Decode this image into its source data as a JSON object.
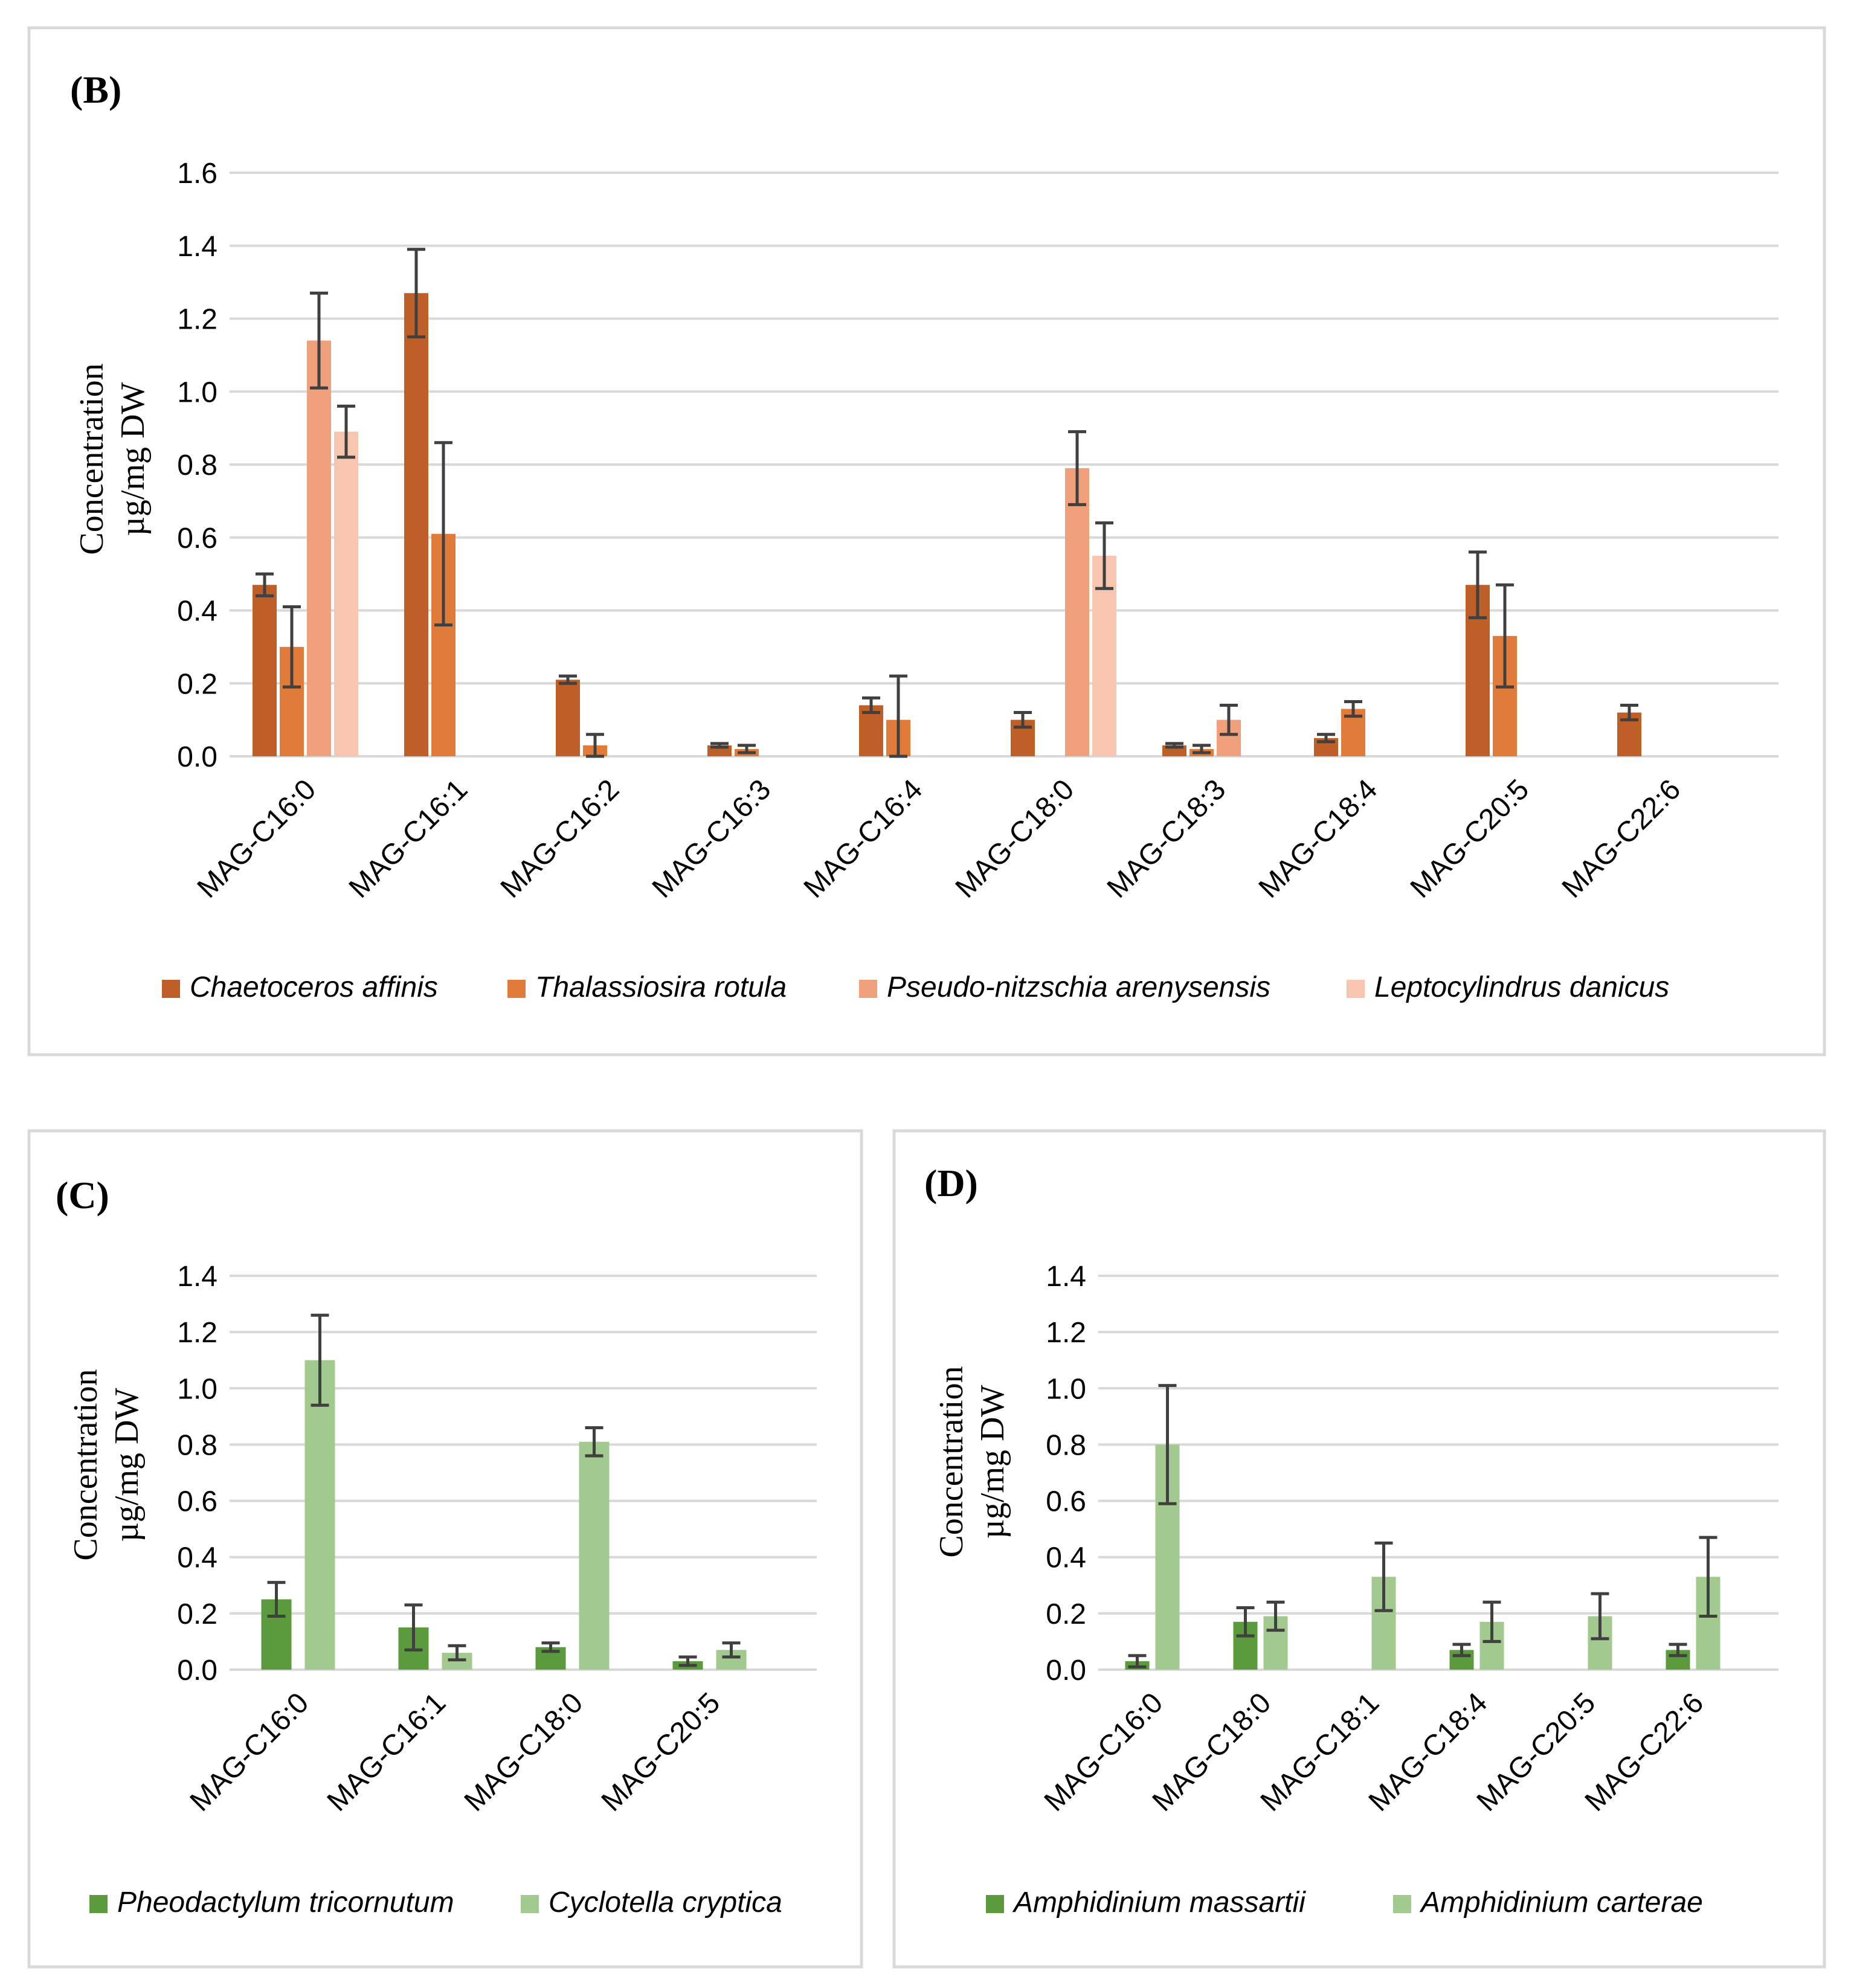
{
  "chart_data": [
    {
      "id": "B",
      "panel_label": "(B)",
      "type": "bar",
      "ylabel_line1": "Concentration",
      "ylabel_line2": "µg/mg DW",
      "ylim": [
        0,
        1.6
      ],
      "yticks": [
        "0.0",
        "0.2",
        "0.4",
        "0.6",
        "0.8",
        "1.0",
        "1.2",
        "1.4",
        "1.6"
      ],
      "grid": true,
      "legend_position": "bottom",
      "categories": [
        "MAG-C16:0",
        "MAG-C16:1",
        "MAG-C16:2",
        "MAG-C16:3",
        "MAG-C16:4",
        "MAG-C18:0",
        "MAG-C18:3",
        "MAG-C18:4",
        "MAG-C20:5",
        "MAG-C22:6"
      ],
      "series": [
        {
          "name": "Chaetoceros affinis",
          "color": "#bf5f28",
          "values": [
            0.47,
            1.27,
            0.21,
            0.03,
            0.14,
            0.1,
            0.03,
            0.05,
            0.47,
            0.12
          ],
          "errors": [
            0.03,
            0.12,
            0.01,
            0.005,
            0.02,
            0.02,
            0.005,
            0.01,
            0.09,
            0.02
          ]
        },
        {
          "name": "Thalassiosira rotula",
          "color": "#e07b39",
          "values": [
            0.3,
            0.61,
            0.03,
            0.02,
            0.1,
            null,
            0.02,
            0.13,
            0.33,
            null
          ],
          "errors": [
            0.11,
            0.25,
            0.03,
            0.01,
            0.12,
            null,
            0.01,
            0.02,
            0.14,
            null
          ]
        },
        {
          "name": "Pseudo-nitzschia arenysensis",
          "color": "#f0a07a",
          "values": [
            1.14,
            null,
            null,
            null,
            null,
            0.79,
            0.1,
            null,
            null,
            null
          ],
          "errors": [
            0.13,
            null,
            null,
            null,
            null,
            0.1,
            0.04,
            null,
            null,
            null
          ]
        },
        {
          "name": "Leptocylindrus danicus",
          "color": "#f8c5b0",
          "values": [
            0.89,
            null,
            null,
            null,
            null,
            0.55,
            null,
            null,
            null,
            null
          ],
          "errors": [
            0.07,
            null,
            null,
            null,
            null,
            0.09,
            null,
            null,
            null,
            null
          ]
        }
      ]
    },
    {
      "id": "C",
      "panel_label": "(C)",
      "type": "bar",
      "ylabel_line1": "Concentration",
      "ylabel_line2": "µg/mg DW",
      "ylim": [
        0,
        1.4
      ],
      "yticks": [
        "0.0",
        "0.2",
        "0.4",
        "0.6",
        "0.8",
        "1.0",
        "1.2",
        "1.4"
      ],
      "grid": true,
      "legend_position": "bottom",
      "categories": [
        "MAG-C16:0",
        "MAG-C16:1",
        "MAG-C18:0",
        "MAG-C20:5"
      ],
      "series": [
        {
          "name": "Pheodactylum tricornutum",
          "color": "#5b9a3d",
          "values": [
            0.25,
            0.15,
            0.08,
            0.03
          ],
          "errors": [
            0.06,
            0.08,
            0.015,
            0.015
          ]
        },
        {
          "name": "Cyclotella cryptica",
          "color": "#a2c98e",
          "values": [
            1.1,
            0.06,
            0.81,
            0.07
          ],
          "errors": [
            0.16,
            0.025,
            0.05,
            0.025
          ]
        }
      ]
    },
    {
      "id": "D",
      "panel_label": "(D)",
      "type": "bar",
      "ylabel_line1": "Concentration",
      "ylabel_line2": "µg/mg DW",
      "ylim": [
        0,
        1.4
      ],
      "yticks": [
        "0.0",
        "0.2",
        "0.4",
        "0.6",
        "0.8",
        "1.0",
        "1.2",
        "1.4"
      ],
      "grid": true,
      "legend_position": "bottom",
      "categories": [
        "MAG-C16:0",
        "MAG-C18:0",
        "MAG-C18:1",
        "MAG-C18:4",
        "MAG-C20:5",
        "MAG-C22:6"
      ],
      "series": [
        {
          "name": "Amphidinium massartii",
          "color": "#5b9a3d",
          "values": [
            0.03,
            0.17,
            null,
            0.07,
            null,
            0.07
          ],
          "errors": [
            0.02,
            0.05,
            null,
            0.02,
            null,
            0.02
          ]
        },
        {
          "name": "Amphidinium carterae",
          "color": "#a2c98e",
          "values": [
            0.8,
            0.19,
            0.33,
            0.17,
            0.19,
            0.33
          ],
          "errors": [
            0.21,
            0.05,
            0.12,
            0.07,
            0.08,
            0.14
          ]
        }
      ]
    }
  ]
}
